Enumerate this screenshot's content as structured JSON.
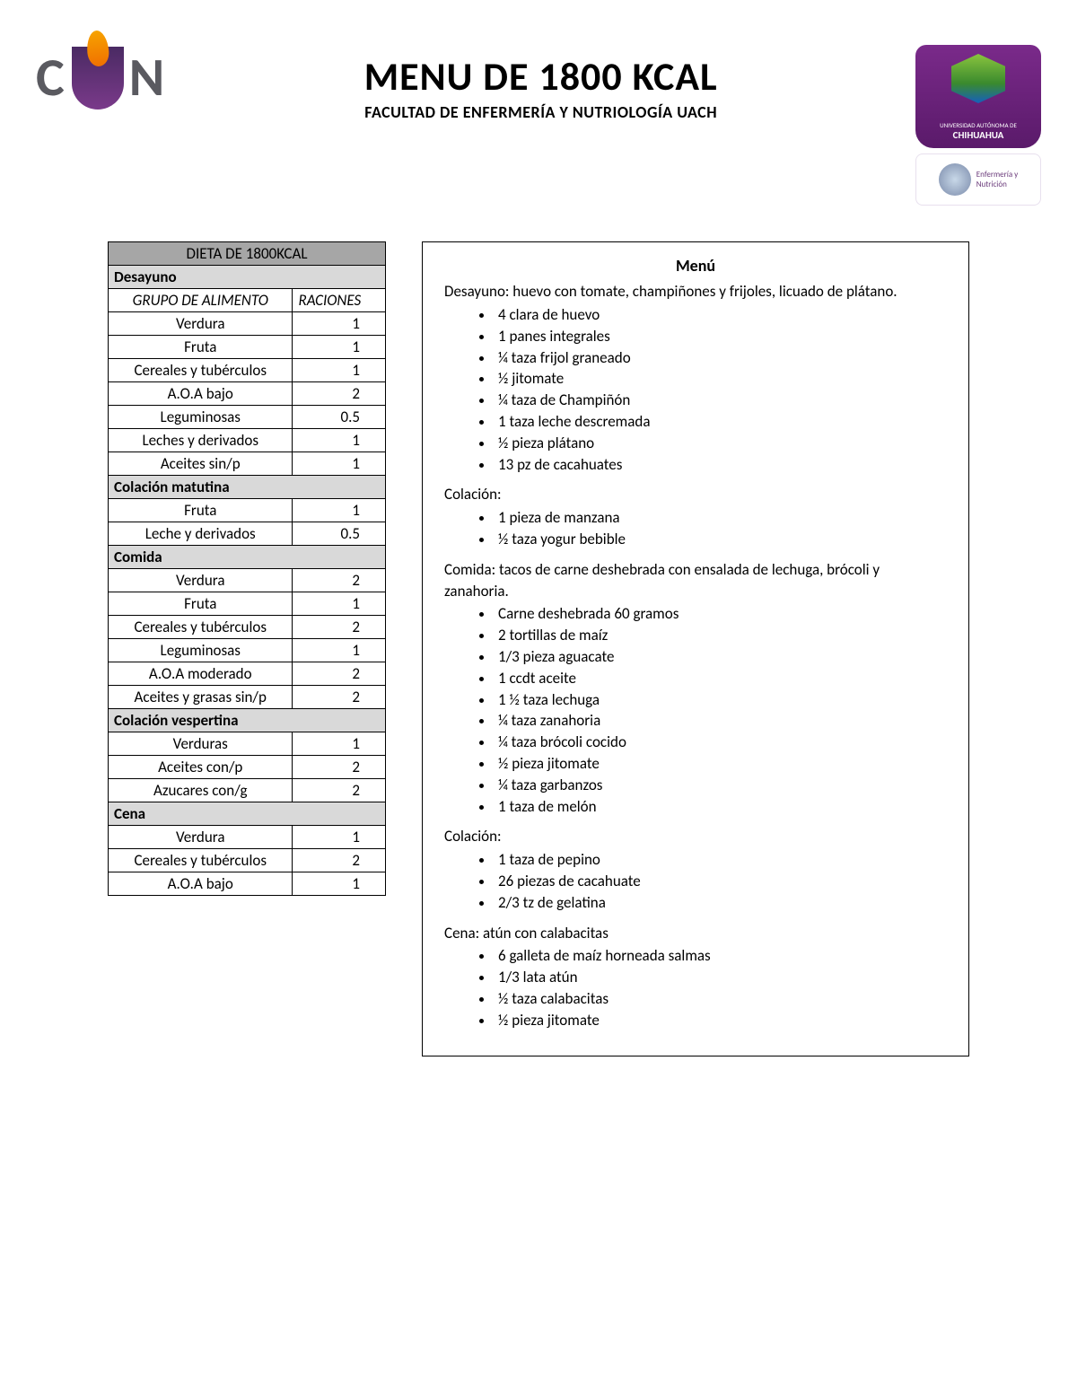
{
  "header": {
    "title": "MENU DE 1800 KCAL",
    "subtitle": "FACULTAD DE ENFERMERÍA Y NUTRIOLOGÍA UACH",
    "logo_left_letters": [
      "C",
      "N"
    ],
    "badge_purple_line1": "UNIVERSIDAD AUTÓNOMA DE",
    "badge_purple_line2": "CHIHUAHUA",
    "badge_white_line1": "Enfermería y",
    "badge_white_line2": "Nutrición"
  },
  "diet_table": {
    "title": "DIETA DE 1800KCAL",
    "col_group": "GRUPO DE ALIMENTO",
    "col_rations": "RACIONES",
    "sections": [
      {
        "name": "Desayuno",
        "show_cols": true,
        "rows": [
          {
            "food": "Verdura",
            "rations": "1"
          },
          {
            "food": "Fruta",
            "rations": "1"
          },
          {
            "food": "Cereales y tubérculos",
            "rations": "1"
          },
          {
            "food": "A.O.A bajo",
            "rations": "2"
          },
          {
            "food": "Leguminosas",
            "rations": "0.5"
          },
          {
            "food": "Leches y derivados",
            "rations": "1"
          },
          {
            "food": "Aceites sin/p",
            "rations": "1"
          }
        ]
      },
      {
        "name": "Colación matutina",
        "show_cols": false,
        "rows": [
          {
            "food": "Fruta",
            "rations": "1"
          },
          {
            "food": "Leche y derivados",
            "rations": "0.5"
          }
        ]
      },
      {
        "name": "Comida",
        "show_cols": false,
        "rows": [
          {
            "food": "Verdura",
            "rations": "2"
          },
          {
            "food": "Fruta",
            "rations": "1"
          },
          {
            "food": "Cereales y tubérculos",
            "rations": "2"
          },
          {
            "food": "Leguminosas",
            "rations": "1"
          },
          {
            "food": "A.O.A moderado",
            "rations": "2"
          },
          {
            "food": "Aceites y grasas sin/p",
            "rations": "2"
          }
        ]
      },
      {
        "name": "Colación vespertina",
        "show_cols": false,
        "rows": [
          {
            "food": "Verduras",
            "rations": "1"
          },
          {
            "food": "Aceites con/p",
            "rations": "2"
          },
          {
            "food": "Azucares con/g",
            "rations": "2"
          }
        ]
      },
      {
        "name": "Cena",
        "show_cols": false,
        "rows": [
          {
            "food": "Verdura",
            "rations": "1"
          },
          {
            "food": "Cereales y tubérculos",
            "rations": "2"
          },
          {
            "food": "A.O.A bajo",
            "rations": "1"
          }
        ]
      }
    ]
  },
  "menu": {
    "heading": "Menú",
    "blocks": [
      {
        "intro": "Desayuno: huevo con tomate, champiñones y frijoles, licuado de plátano.",
        "items": [
          "4 clara de huevo",
          "1 panes integrales",
          "¼ taza frijol graneado",
          "½  jitomate",
          " ¼ taza de Champiñón",
          "1 taza leche descremada",
          "½ pieza plátano",
          "13 pz de cacahuates"
        ]
      },
      {
        "intro": "Colación:",
        "items": [
          "1 pieza de manzana",
          "½ taza yogur bebible"
        ]
      },
      {
        "intro": "Comida: tacos de carne deshebrada con ensalada de lechuga, brócoli y zanahoria.",
        "items": [
          "Carne deshebrada 60 gramos",
          "2 tortillas de maíz",
          "1/3 pieza aguacate",
          "1 ccdt aceite",
          "1 ½ taza lechuga",
          "¼ taza zanahoria",
          "¼ taza brócoli cocido",
          "½ pieza jitomate",
          "¼ taza garbanzos",
          "1 taza de melón"
        ]
      },
      {
        "intro": "Colación:",
        "items": [
          "1 taza de pepino",
          "26 piezas de cacahuate",
          "2/3 tz  de gelatina"
        ]
      },
      {
        "intro": "Cena: atún con calabacitas",
        "items": [
          "6 galleta de maíz horneada salmas",
          "1/3 lata atún",
          "½ taza calabacitas",
          "½ pieza jitomate"
        ]
      }
    ]
  },
  "colors": {
    "section_bg": "#d9d9d9",
    "header_bg": "#a6a6a6",
    "border": "#000000",
    "logo_purple": "#5a2a73",
    "logo_orange": "#f08a00"
  }
}
